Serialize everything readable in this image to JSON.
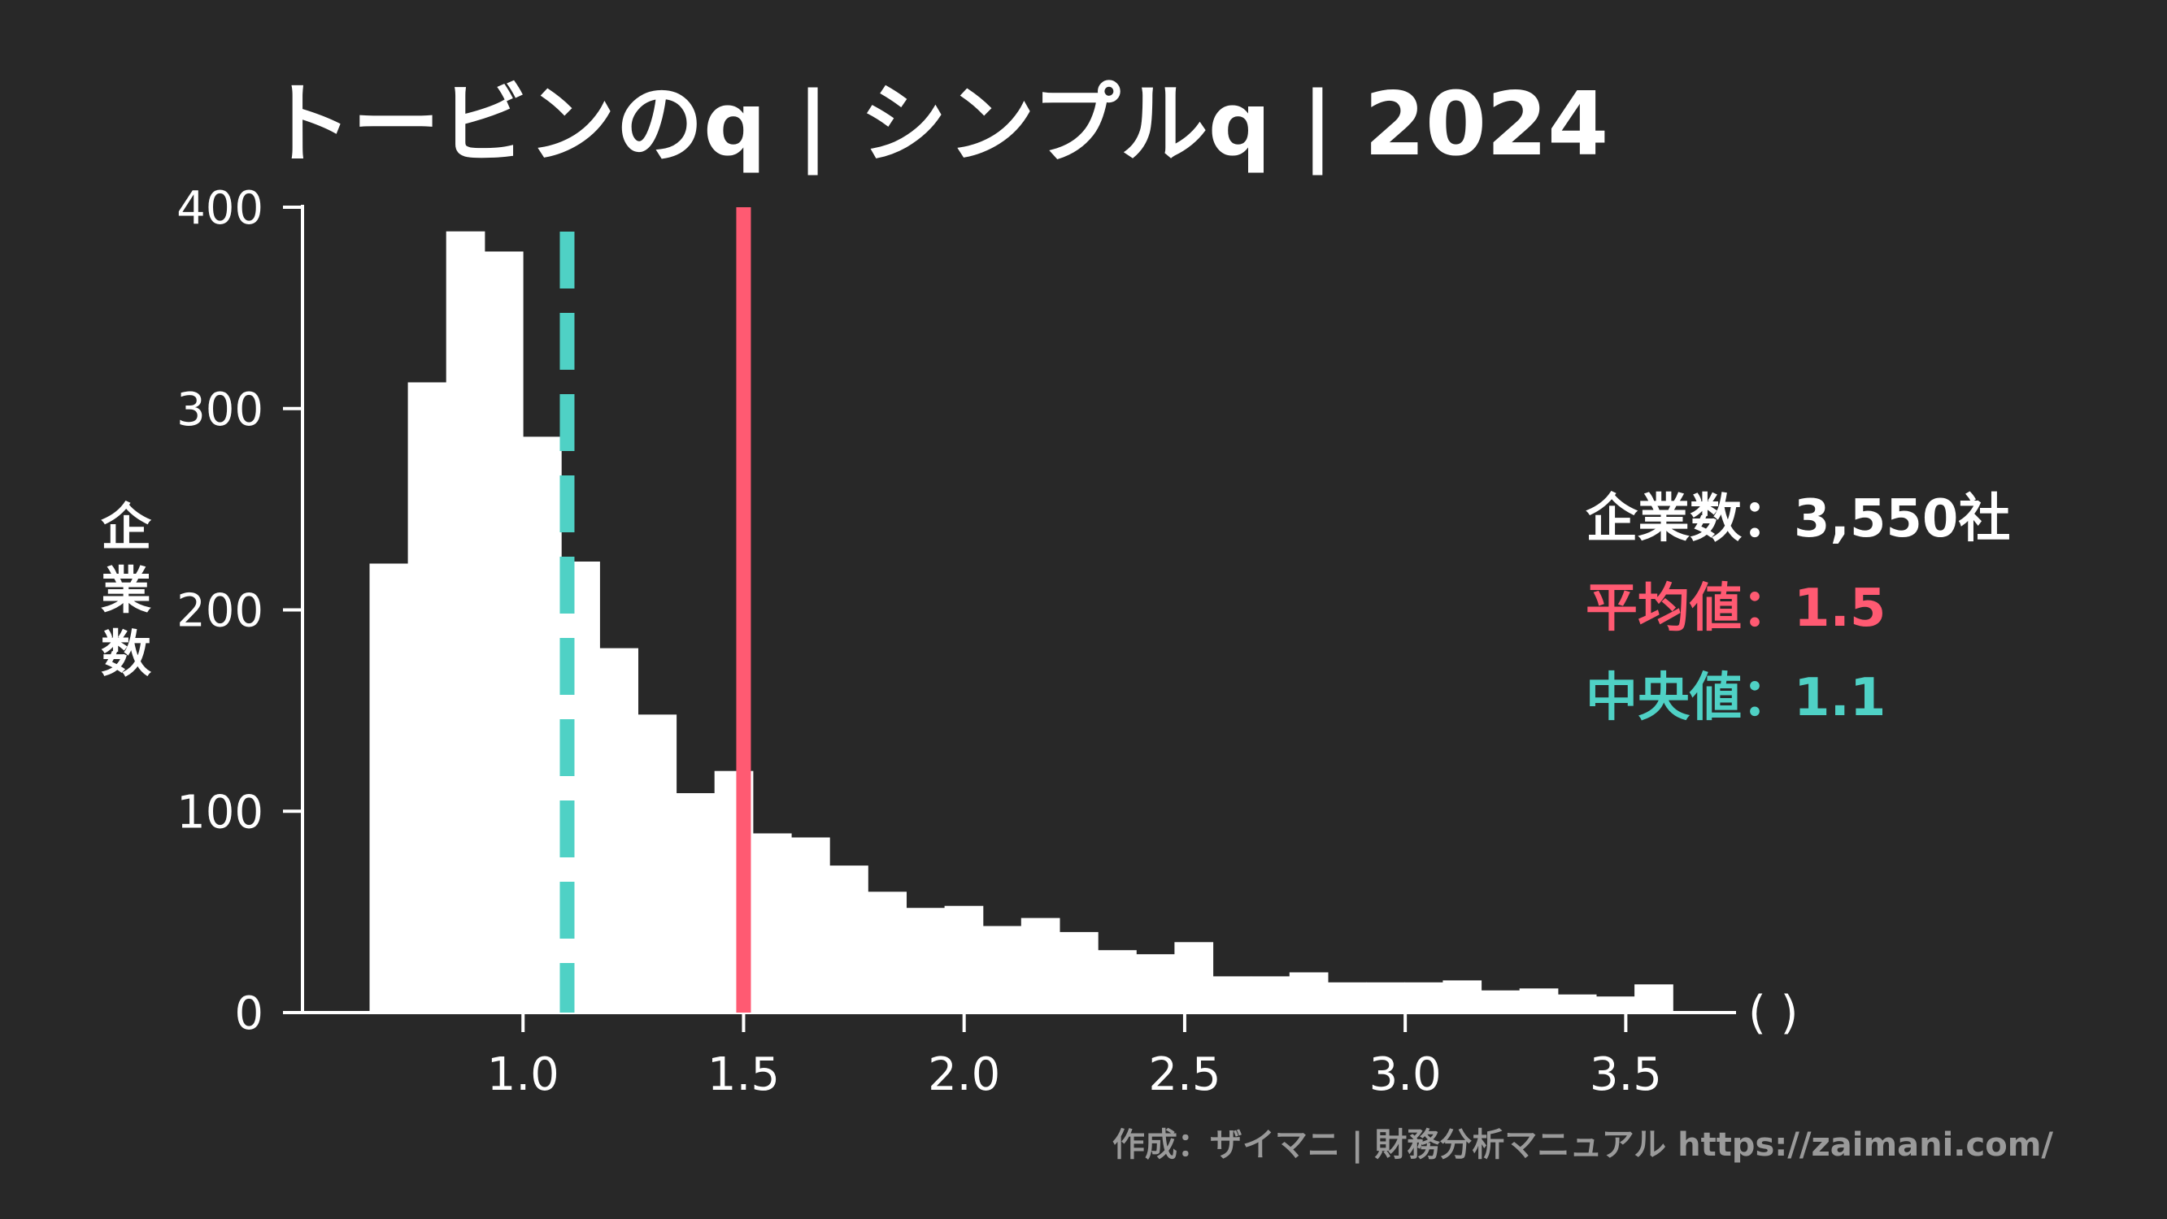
{
  "chart_data": {
    "type": "bar",
    "title": "トービンのq | シンプルq | 2024",
    "ylabel": "企業数",
    "xunit": "( )",
    "xlim": [
      0.5,
      3.75
    ],
    "ylim": [
      0,
      400
    ],
    "xticks": [
      "1.0",
      "1.5",
      "2.0",
      "2.5",
      "3.0",
      "3.5"
    ],
    "yticks": [
      "0",
      "100",
      "200",
      "300",
      "400"
    ],
    "bin_width": 0.0869,
    "bin_start": 0.652,
    "values": [
      223,
      313,
      388,
      378,
      286,
      224,
      181,
      148,
      109,
      120,
      89,
      87,
      73,
      60,
      52,
      53,
      43,
      47,
      40,
      31,
      29,
      35,
      18,
      18,
      20,
      15,
      15,
      15,
      16,
      11,
      12,
      9,
      8,
      14
    ],
    "mean": 1.5,
    "median": 1.1,
    "colors": {
      "bars": "#ffffff",
      "mean": "#ff5a72",
      "median": "#4fd1c5",
      "background": "#282828"
    }
  },
  "stats": {
    "count_label": "企業数",
    "count_value": "3,550社",
    "mean_label": "平均値",
    "mean_value": "1.5",
    "median_label": "中央値",
    "median_value": "1.1",
    "separator": "："
  },
  "footer": {
    "credit": "作成：ザイマニ | 財務分析マニュアル https://zaimani.com/"
  }
}
